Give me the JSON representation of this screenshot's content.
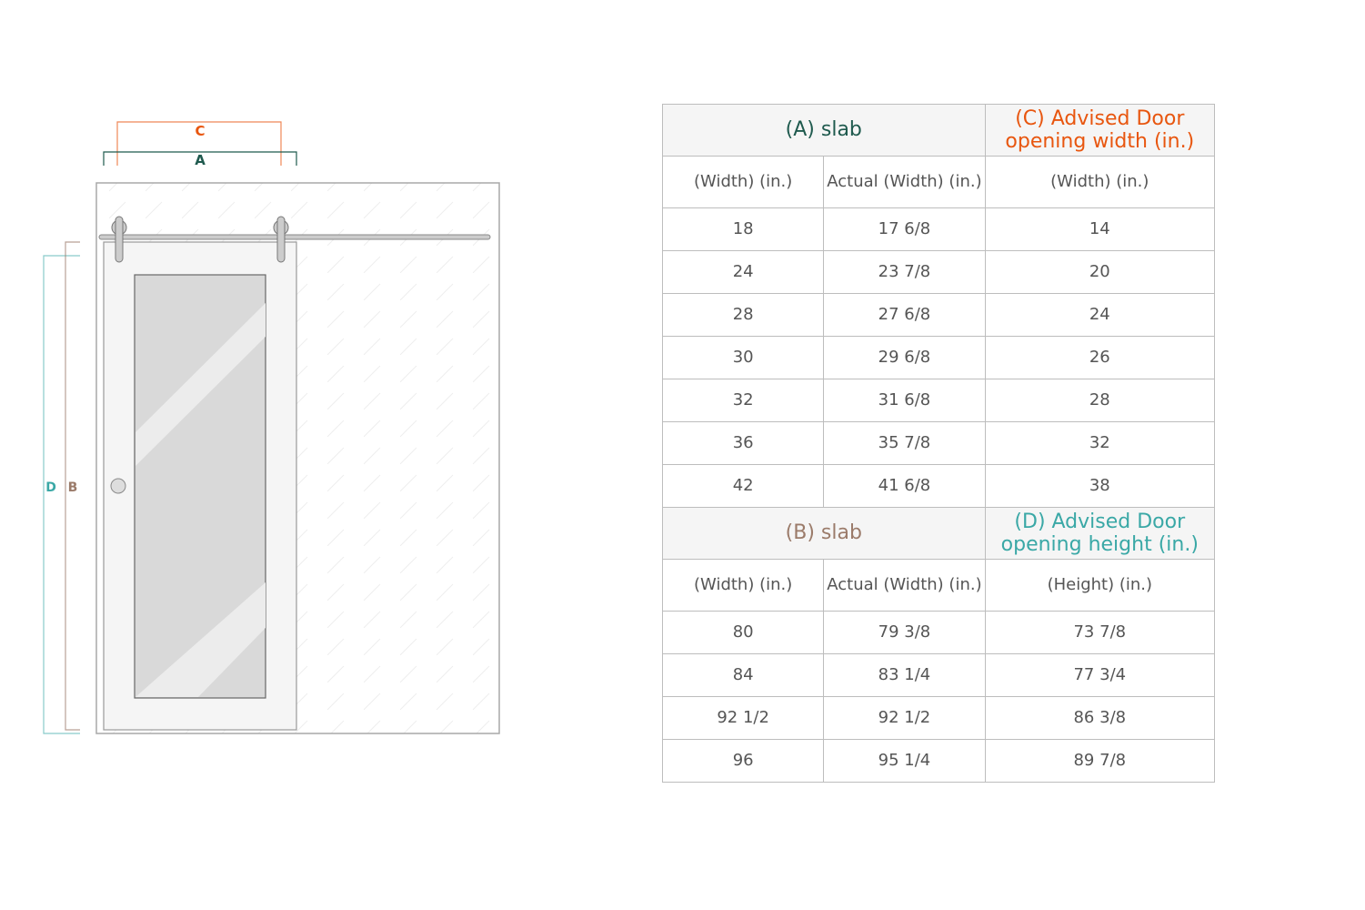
{
  "diagram": {
    "labels": {
      "c": "C",
      "a": "A",
      "d": "D",
      "b": "B"
    },
    "colors": {
      "a": "#1f5a4e",
      "c": "#e8560f",
      "b": "#9b7b6a",
      "d": "#3aa8a6"
    }
  },
  "table": {
    "width_section": {
      "slab_title": "(A) slab",
      "advised_title": "(C) Advised Door opening width (in.)",
      "headers": [
        "(Width) (in.)",
        "Actual (Width) (in.)",
        "(Width) (in.)"
      ],
      "rows": [
        [
          "18",
          "17 6/8",
          "14"
        ],
        [
          "24",
          "23 7/8",
          "20"
        ],
        [
          "28",
          "27 6/8",
          "24"
        ],
        [
          "30",
          "29 6/8",
          "26"
        ],
        [
          "32",
          "31 6/8",
          "28"
        ],
        [
          "36",
          "35 7/8",
          "32"
        ],
        [
          "42",
          "41 6/8",
          "38"
        ]
      ]
    },
    "height_section": {
      "slab_title": "(B) slab",
      "advised_title": "(D) Advised Door opening height (in.)",
      "headers": [
        "(Width) (in.)",
        "Actual (Width) (in.)",
        "(Height) (in.)"
      ],
      "rows": [
        [
          "80",
          "79 3/8",
          "73 7/8"
        ],
        [
          "84",
          "83 1/4",
          "77 3/4"
        ],
        [
          "92 1/2",
          "92 1/2",
          "86 3/8"
        ],
        [
          "96",
          "95 1/4",
          "89 7/8"
        ]
      ]
    }
  }
}
